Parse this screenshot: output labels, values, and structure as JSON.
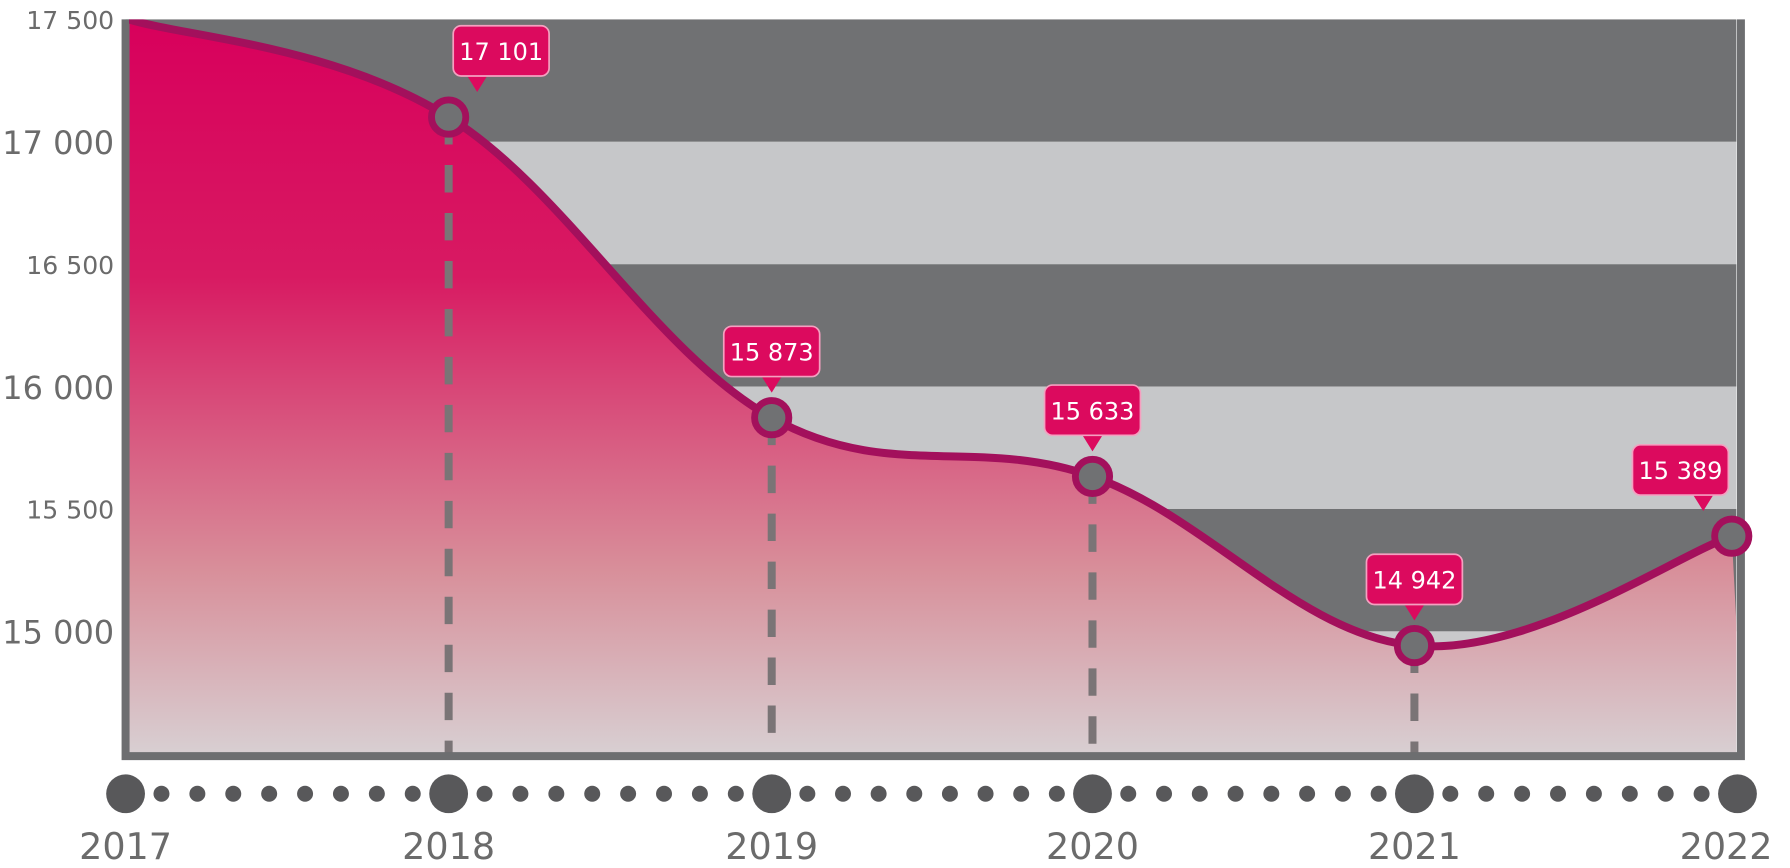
{
  "chart_data": {
    "type": "area",
    "title": "",
    "xlabel": "",
    "ylabel": "",
    "x": [
      "2017",
      "2018",
      "2019",
      "2020",
      "2021",
      "2022"
    ],
    "series": [
      {
        "values": [
          17500,
          17101,
          15873,
          15633,
          14942,
          15389
        ]
      }
    ],
    "data_labels": [
      "",
      "17 101",
      "15 873",
      "15 633",
      "14 942",
      "15 389"
    ],
    "y_ticks": [
      {
        "value": 17500,
        "label": "17 500"
      },
      {
        "value": 17000,
        "label": "17 000"
      },
      {
        "value": 16500,
        "label": "16 500"
      },
      {
        "value": 16000,
        "label": "16 000"
      },
      {
        "value": 15500,
        "label": "15 500"
      },
      {
        "value": 15000,
        "label": "15 000"
      }
    ],
    "ylim": [
      14500,
      17500
    ],
    "grid": "alternating horizontal bands",
    "colors": {
      "line": "#a3105c",
      "fill_top": "#d8005c",
      "fill_bottom": "#ddd0d2",
      "band_dark": "#707173",
      "band_light": "#c6c7c9",
      "label_bg": "#dc0a5e",
      "axis": "#6d6e70",
      "text": "#6b6b6b"
    }
  }
}
